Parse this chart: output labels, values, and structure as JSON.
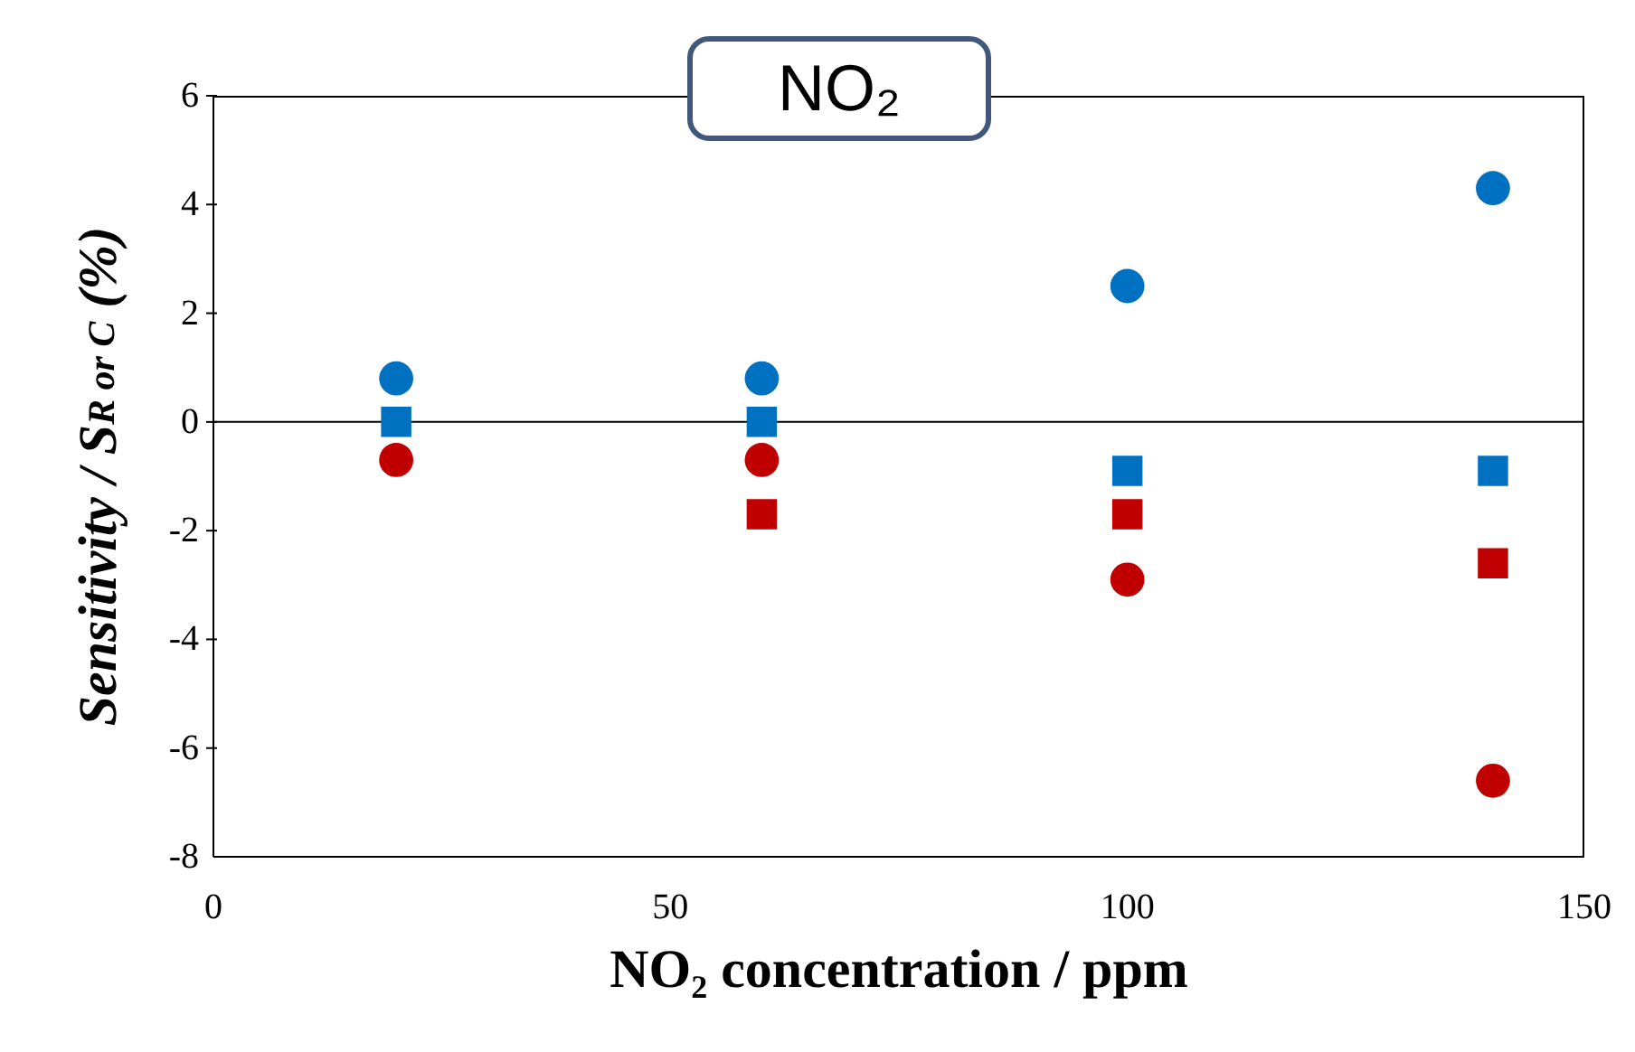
{
  "chart_data": {
    "type": "scatter",
    "title": "NO₂",
    "xlabel": "NO₂ concentration / ppm",
    "ylabel": "Sensitivity / S$_{R or C}$ (%)",
    "x": [
      20,
      60,
      100,
      140
    ],
    "series": [
      {
        "color": "#0070c0",
        "marker": "circle",
        "values": [
          0.8,
          0.8,
          2.5,
          4.3
        ]
      },
      {
        "color": "#0070c0",
        "marker": "square",
        "values": [
          0,
          0,
          -0.9,
          -0.9
        ]
      },
      {
        "color": "#c00000",
        "marker": "circle",
        "values": [
          -0.7,
          -0.7,
          -2.9,
          -6.6
        ]
      },
      {
        "color": "#c00000",
        "marker": "square",
        "values": [
          null,
          -1.7,
          -1.7,
          -2.6
        ]
      }
    ],
    "xlim": [
      0,
      150
    ],
    "xticks": [
      0,
      50,
      100,
      150
    ],
    "ylim": [
      -8,
      6
    ],
    "yticks": [
      -8,
      -6,
      -4,
      -2,
      0,
      2,
      4,
      6
    ],
    "ref_lines": [
      {
        "axis": "y",
        "value": 0,
        "color": "#000000"
      }
    ]
  }
}
